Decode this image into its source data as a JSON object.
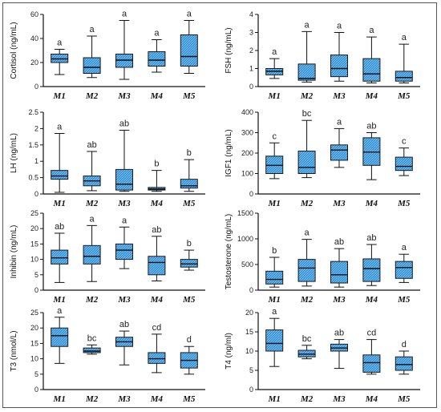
{
  "colors": {
    "box_fill": "#2f8fd8",
    "box_stroke": "#1a1a1a",
    "hatch": "#9fd0f2"
  },
  "chart_data": [
    {
      "type": "box",
      "ylabel": "Cortisol (ng/mL)",
      "ylim": [
        0,
        60
      ],
      "yticks": [
        0,
        20,
        40,
        60
      ],
      "categories": [
        "M1",
        "M2",
        "M3",
        "M4",
        "M5"
      ],
      "boxes": [
        {
          "min": 10,
          "q1": 20,
          "median": 23,
          "q3": 27,
          "max": 31,
          "letter": "a"
        },
        {
          "min": 7.5,
          "q1": 11,
          "median": 16,
          "q3": 24,
          "max": 42,
          "letter": "a"
        },
        {
          "min": 6,
          "q1": 16,
          "median": 22,
          "q3": 27,
          "max": 55,
          "letter": "a"
        },
        {
          "min": 12,
          "q1": 17,
          "median": 22,
          "q3": 29,
          "max": 39,
          "letter": "a"
        },
        {
          "min": 11,
          "q1": 17,
          "median": 25,
          "q3": 43,
          "max": 55,
          "letter": "a"
        }
      ]
    },
    {
      "type": "box",
      "ylabel": "FSH (ng/mL)",
      "ylim": [
        0,
        4
      ],
      "yticks": [
        0,
        1,
        2,
        3,
        4
      ],
      "categories": [
        "M1",
        "M2",
        "M3",
        "M4",
        "M5"
      ],
      "boxes": [
        {
          "min": 0.45,
          "q1": 0.65,
          "median": 0.85,
          "q3": 1.0,
          "max": 1.55,
          "letter": "a"
        },
        {
          "min": 0.25,
          "q1": 0.35,
          "median": 0.45,
          "q3": 1.25,
          "max": 3.05,
          "letter": "a"
        },
        {
          "min": 0.3,
          "q1": 0.55,
          "median": 1.0,
          "q3": 1.75,
          "max": 3.0,
          "letter": "a"
        },
        {
          "min": 0.2,
          "q1": 0.3,
          "median": 0.7,
          "q3": 1.55,
          "max": 2.75,
          "letter": "a"
        },
        {
          "min": 0.2,
          "q1": 0.3,
          "median": 0.5,
          "q3": 0.85,
          "max": 2.35,
          "letter": "a"
        }
      ]
    },
    {
      "type": "box",
      "ylabel": "LH (ng/mL)",
      "ylim": [
        0,
        2.5
      ],
      "yticks": [
        0,
        0.5,
        1,
        1.5,
        2,
        2.5
      ],
      "categories": [
        "M1",
        "M2",
        "M3",
        "M4",
        "M5"
      ],
      "boxes": [
        {
          "min": 0.05,
          "q1": 0.45,
          "median": 0.55,
          "q3": 0.72,
          "max": 1.85,
          "letter": "a"
        },
        {
          "min": 0.1,
          "q1": 0.25,
          "median": 0.4,
          "q3": 0.55,
          "max": 1.3,
          "letter": "ab"
        },
        {
          "min": 0.08,
          "q1": 0.12,
          "median": 0.3,
          "q3": 0.75,
          "max": 1.95,
          "letter": "ab"
        },
        {
          "min": 0.08,
          "q1": 0.12,
          "median": 0.15,
          "q3": 0.2,
          "max": 0.72,
          "letter": "b"
        },
        {
          "min": 0.08,
          "q1": 0.18,
          "median": 0.25,
          "q3": 0.45,
          "max": 1.05,
          "letter": "b"
        }
      ]
    },
    {
      "type": "box",
      "ylabel": "IGF1 (ng/mL)",
      "ylim": [
        0,
        400
      ],
      "yticks": [
        0,
        100,
        200,
        300,
        400
      ],
      "categories": [
        "M1",
        "M2",
        "M3",
        "M4",
        "M5"
      ],
      "boxes": [
        {
          "min": 75,
          "q1": 100,
          "median": 140,
          "q3": 185,
          "max": 250,
          "letter": "c"
        },
        {
          "min": 80,
          "q1": 100,
          "median": 130,
          "q3": 210,
          "max": 360,
          "letter": "bc"
        },
        {
          "min": 130,
          "q1": 165,
          "median": 215,
          "q3": 240,
          "max": 320,
          "letter": "a"
        },
        {
          "min": 70,
          "q1": 140,
          "median": 205,
          "q3": 275,
          "max": 300,
          "letter": "ab"
        },
        {
          "min": 90,
          "q1": 115,
          "median": 135,
          "q3": 180,
          "max": 225,
          "letter": "c"
        }
      ]
    },
    {
      "type": "box",
      "ylabel": "Inhibin (ng/mL)",
      "ylim": [
        0,
        25
      ],
      "yticks": [
        0,
        5,
        10,
        15,
        20,
        25
      ],
      "categories": [
        "M1",
        "M2",
        "M3",
        "M4",
        "M5"
      ],
      "boxes": [
        {
          "min": 2.5,
          "q1": 8.5,
          "median": 10.5,
          "q3": 13,
          "max": 18.5,
          "letter": "ab"
        },
        {
          "min": 2.8,
          "q1": 8.5,
          "median": 11,
          "q3": 14.5,
          "max": 21,
          "letter": "a"
        },
        {
          "min": 7,
          "q1": 10,
          "median": 13,
          "q3": 15,
          "max": 20.5,
          "letter": "a"
        },
        {
          "min": 3,
          "q1": 5,
          "median": 9,
          "q3": 11,
          "max": 17.5,
          "letter": "ab"
        },
        {
          "min": 6.5,
          "q1": 7.5,
          "median": 8.5,
          "q3": 10,
          "max": 13,
          "letter": "b"
        }
      ]
    },
    {
      "type": "box",
      "ylabel": "Testosterone (ng/mL)",
      "ylim": [
        0,
        1500
      ],
      "yticks": [
        0,
        500,
        1000,
        1500
      ],
      "categories": [
        "M1",
        "M2",
        "M3",
        "M4",
        "M5"
      ],
      "boxes": [
        {
          "min": 60,
          "q1": 120,
          "median": 210,
          "q3": 370,
          "max": 640,
          "letter": "b"
        },
        {
          "min": 80,
          "q1": 170,
          "median": 430,
          "q3": 600,
          "max": 990,
          "letter": "a"
        },
        {
          "min": 60,
          "q1": 140,
          "median": 300,
          "q3": 560,
          "max": 810,
          "letter": "ab"
        },
        {
          "min": 90,
          "q1": 170,
          "median": 420,
          "q3": 610,
          "max": 890,
          "letter": "ab"
        },
        {
          "min": 150,
          "q1": 230,
          "median": 440,
          "q3": 560,
          "max": 700,
          "letter": "a"
        }
      ]
    },
    {
      "type": "box",
      "ylabel": "T3 (nmol/L)",
      "ylim": [
        0,
        25
      ],
      "yticks": [
        0,
        5,
        10,
        15,
        20,
        25
      ],
      "categories": [
        "M1",
        "M2",
        "M3",
        "M4",
        "M5"
      ],
      "boxes": [
        {
          "min": 8.5,
          "q1": 14,
          "median": 17.5,
          "q3": 20,
          "max": 23.5,
          "letter": "a"
        },
        {
          "min": 11.5,
          "q1": 12,
          "median": 12.5,
          "q3": 13.5,
          "max": 14.5,
          "letter": "bc"
        },
        {
          "min": 8,
          "q1": 14,
          "median": 15.5,
          "q3": 17,
          "max": 19,
          "letter": "ab"
        },
        {
          "min": 5.5,
          "q1": 8.5,
          "median": 10,
          "q3": 12,
          "max": 18,
          "letter": "cd"
        },
        {
          "min": 5,
          "q1": 7,
          "median": 9.5,
          "q3": 12,
          "max": 14,
          "letter": "d"
        }
      ]
    },
    {
      "type": "box",
      "ylabel": "T4 (ng/ml)",
      "ylim": [
        0,
        20
      ],
      "yticks": [
        0,
        5,
        10,
        15,
        20
      ],
      "categories": [
        "M1",
        "M2",
        "M3",
        "M4",
        "M5"
      ],
      "boxes": [
        {
          "min": 6,
          "q1": 10,
          "median": 12,
          "q3": 15.5,
          "max": 18.5,
          "letter": "a"
        },
        {
          "min": 8,
          "q1": 8.5,
          "median": 9.2,
          "q3": 10.2,
          "max": 11.5,
          "letter": "bc"
        },
        {
          "min": 5.5,
          "q1": 10,
          "median": 10.8,
          "q3": 11.8,
          "max": 13,
          "letter": "ab"
        },
        {
          "min": 4,
          "q1": 4.5,
          "median": 7,
          "q3": 9,
          "max": 13,
          "letter": "cd"
        },
        {
          "min": 4,
          "q1": 5,
          "median": 6.5,
          "q3": 8.5,
          "max": 10,
          "letter": "d"
        }
      ]
    }
  ]
}
